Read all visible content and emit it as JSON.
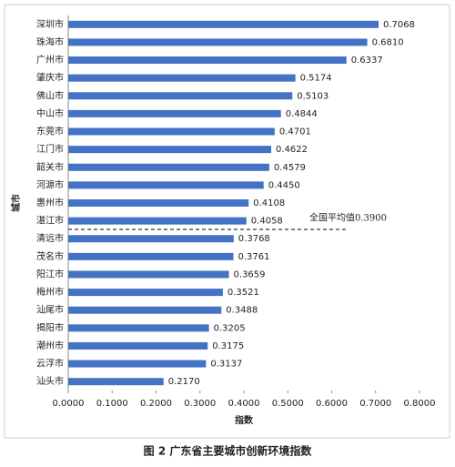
{
  "chart_data": {
    "type": "bar",
    "orientation": "horizontal",
    "title": "图 2 广东省主要城市创新环境指数",
    "x_label": "指数",
    "y_label": "城市",
    "annotation": "全国平均值0.3900",
    "categories": [
      "深圳市",
      "珠海市",
      "广州市",
      "肇庆市",
      "佛山市",
      "中山市",
      "东莞市",
      "江门市",
      "韶关市",
      "河源市",
      "惠州市",
      "湛江市",
      "清远市",
      "茂名市",
      "阳江市",
      "梅州市",
      "汕尾市",
      "揭阳市",
      "潮州市",
      "云浮市",
      "汕头市"
    ],
    "values": [
      0.7068,
      0.681,
      0.6337,
      0.5174,
      0.5103,
      0.4844,
      0.4701,
      0.4622,
      0.4579,
      0.445,
      0.4108,
      0.4058,
      0.3768,
      0.3761,
      0.3659,
      0.3521,
      0.3488,
      0.3205,
      0.3175,
      0.3137,
      0.217
    ],
    "value_labels": [
      "0.7068",
      "0.6810",
      "0.6337",
      "0.5174",
      "0.5103",
      "0.4844",
      "0.4701",
      "0.4622",
      "0.4579",
      "0.4450",
      "0.4108",
      "0.4058",
      "0.3768",
      "0.3761",
      "0.3659",
      "0.3521",
      "0.3488",
      "0.3205",
      "0.3175",
      "0.3137",
      "0.2170"
    ],
    "color": "#4472c4",
    "xlim": [
      0,
      0.8
    ],
    "xticks": [
      {
        "value": 0,
        "label": "0.0000"
      },
      {
        "value": 0.1,
        "label": "0.1000"
      },
      {
        "value": 0.2,
        "label": "0.2000"
      },
      {
        "value": 0.3,
        "label": "0.3000"
      },
      {
        "value": 0.4,
        "label": "0.4000"
      },
      {
        "value": 0.5,
        "label": "0.5000"
      },
      {
        "value": 0.6,
        "label": "0.6000"
      },
      {
        "value": 0.7,
        "label": "0.7000"
      },
      {
        "value": 0.8,
        "label": "0.8000"
      }
    ]
  }
}
